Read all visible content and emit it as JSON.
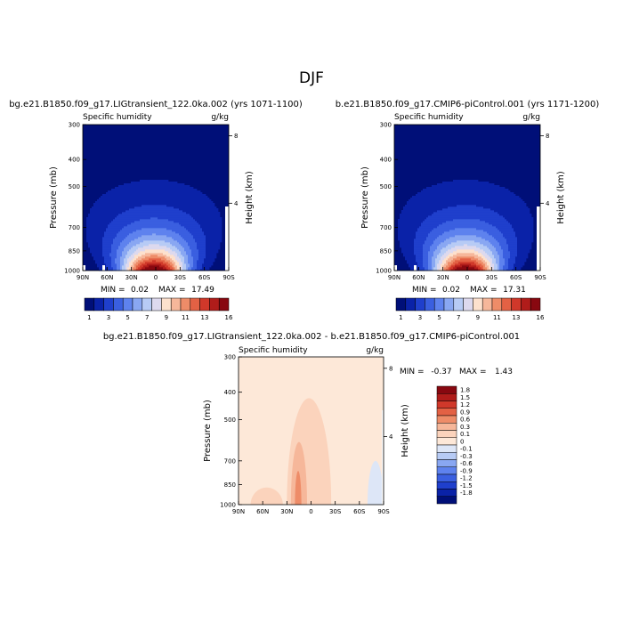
{
  "figure": {
    "season": "DJF"
  },
  "chart_data": [
    {
      "type": "heatmap",
      "title": "bg.e21.B1850.f09_g17.LIGtransient_122.0ka.002 (yrs 1071-1100)",
      "variable": "Specific humidity",
      "units": "g/kg",
      "ylabel": "Pressure (mb)",
      "y2label": "Height (km)",
      "xticks": [
        "90N",
        "60N",
        "30N",
        "0",
        "30S",
        "60S",
        "90S"
      ],
      "yticks": [
        "300",
        "400",
        "500",
        "700",
        "850",
        "1000"
      ],
      "y2ticks": [
        "8",
        "4"
      ],
      "xlim": [
        -90,
        90
      ],
      "ylim": [
        1000,
        300
      ],
      "log_pressure_axis": true,
      "min_label": "MIN =",
      "min_value": "0.02",
      "max_label": "MAX =",
      "max_value": "17.49",
      "peak": 17.49,
      "colorbar": {
        "labels": [
          "1",
          "3",
          "5",
          "7",
          "9",
          "11",
          "13",
          "16"
        ],
        "colors": [
          "#000f78",
          "#0a22a8",
          "#1f3fcc",
          "#3a5fe0",
          "#5e82ee",
          "#89a7f2",
          "#b7cbf5",
          "#ddd9ee",
          "#fde1cd",
          "#f6b79a",
          "#ee8c68",
          "#e36144",
          "#d0382a",
          "#b01c1a",
          "#880810"
        ]
      }
    },
    {
      "type": "heatmap",
      "title": "b.e21.B1850.f09_g17.CMIP6-piControl.001 (yrs 1171-1200)",
      "variable": "Specific humidity",
      "units": "g/kg",
      "ylabel": "Pressure (mb)",
      "y2label": "Height (km)",
      "xticks": [
        "90N",
        "60N",
        "30N",
        "0",
        "30S",
        "60S",
        "90S"
      ],
      "yticks": [
        "300",
        "400",
        "500",
        "700",
        "850",
        "1000"
      ],
      "y2ticks": [
        "8",
        "4"
      ],
      "xlim": [
        -90,
        90
      ],
      "ylim": [
        1000,
        300
      ],
      "log_pressure_axis": true,
      "min_label": "MIN =",
      "min_value": "0.02",
      "max_label": "MAX =",
      "max_value": "17.31",
      "peak": 17.31,
      "colorbar": {
        "labels": [
          "1",
          "3",
          "5",
          "7",
          "9",
          "11",
          "13",
          "16"
        ],
        "colors": [
          "#000f78",
          "#0a22a8",
          "#1f3fcc",
          "#3a5fe0",
          "#5e82ee",
          "#89a7f2",
          "#b7cbf5",
          "#ddd9ee",
          "#fde1cd",
          "#f6b79a",
          "#ee8c68",
          "#e36144",
          "#d0382a",
          "#b01c1a",
          "#880810"
        ]
      }
    },
    {
      "type": "heatmap",
      "title": "bg.e21.B1850.f09_g17.LIGtransient_122.0ka.002 - b.e21.B1850.f09_g17.CMIP6-piControl.001",
      "variable": "Specific humidity",
      "units": "g/kg",
      "ylabel": "Pressure (mb)",
      "y2label": "Height (km)",
      "xticks": [
        "90N",
        "60N",
        "30N",
        "0",
        "30S",
        "60S",
        "90S"
      ],
      "yticks": [
        "300",
        "400",
        "500",
        "700",
        "850",
        "1000"
      ],
      "y2ticks": [
        "8",
        "4"
      ],
      "xlim": [
        -90,
        90
      ],
      "ylim": [
        1000,
        300
      ],
      "log_pressure_axis": true,
      "min_label": "MIN =",
      "min_value": "-0.37",
      "max_label": "MAX =",
      "max_value": "1.43",
      "colorbar": {
        "labels": [
          "1.8",
          "1.5",
          "1.2",
          "0.9",
          "0.6",
          "0.3",
          "0.1",
          "0",
          "-0.1",
          "-0.3",
          "-0.6",
          "-0.9",
          "-1.2",
          "-1.5",
          "-1.8"
        ],
        "colors": [
          "#880810",
          "#b01c1a",
          "#d0382a",
          "#e36144",
          "#ee8c68",
          "#f6b79a",
          "#fbd3bc",
          "#fde8d8",
          "#dde6f7",
          "#b7cbf5",
          "#89a7f2",
          "#5e82ee",
          "#3a5fe0",
          "#1f3fcc",
          "#0a22a8",
          "#000f78"
        ]
      },
      "anomaly_regions": [
        {
          "level": 0.05,
          "lat_from": 80,
          "lat_to": -40,
          "p_from": 1000,
          "p_to": 300
        },
        {
          "level": 0.2,
          "lat_from": 75,
          "lat_to": 35,
          "p_from": 1000,
          "p_to": 870
        },
        {
          "level": 0.2,
          "lat_from": 30,
          "lat_to": -25,
          "p_from": 1000,
          "p_to": 420
        },
        {
          "level": 0.45,
          "lat_from": 25,
          "lat_to": 5,
          "p_from": 1000,
          "p_to": 600
        },
        {
          "level": 0.75,
          "lat_from": 20,
          "lat_to": 12,
          "p_from": 1000,
          "p_to": 760
        },
        {
          "level": -0.05,
          "lat_from": -70,
          "lat_to": -90,
          "p_from": 1000,
          "p_to": 700
        }
      ]
    }
  ]
}
